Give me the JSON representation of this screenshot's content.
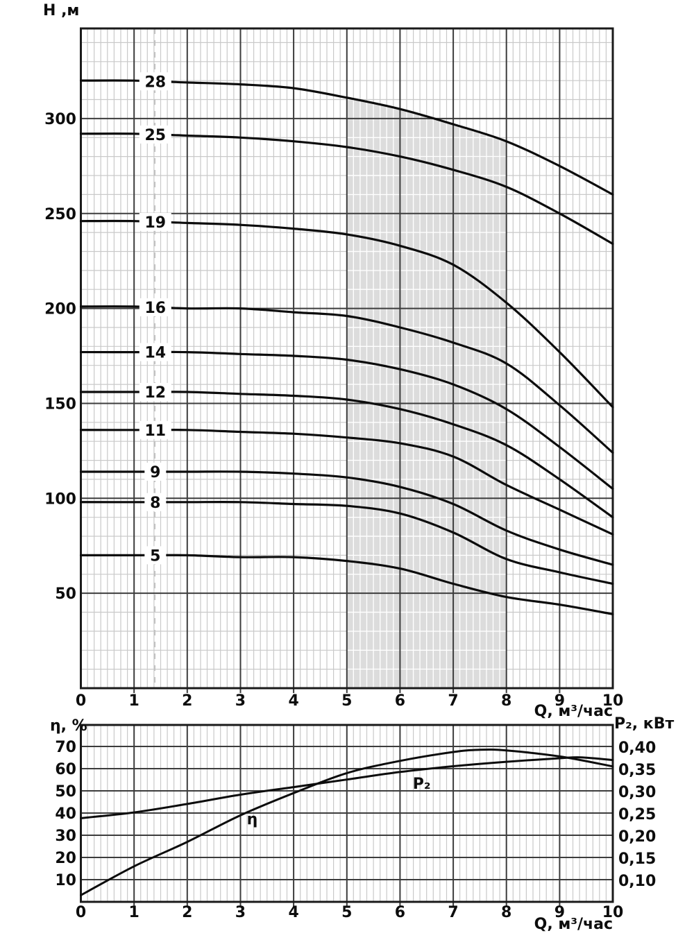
{
  "page": {
    "background": "#ffffff"
  },
  "colors": {
    "curve": "#0c0c0c",
    "grid_major": "#3c3c3c",
    "grid_minor": "#c9c9c9",
    "grid_minor_on_shade": "#ffffff",
    "border": "#1a1a1a",
    "shade": "#dcdcdc",
    "guide_dash": "#c2c2c2",
    "text": "#0d0d0d"
  },
  "chart_data": [
    {
      "id": "head_flow_chart",
      "type": "line",
      "title": "",
      "ylabel": "Н ,м",
      "xlabel": "Q, м³/час",
      "xlim": [
        0,
        10
      ],
      "ylim": [
        0,
        347
      ],
      "x_ticks": [
        "0",
        "1",
        "2",
        "3",
        "4",
        "5",
        "6",
        "7",
        "8",
        "9",
        "10"
      ],
      "y_ticks": [
        50,
        100,
        150,
        200,
        250,
        300
      ],
      "grid": "fine",
      "legend_position": "on-curve-labels",
      "shaded_band": {
        "x_from": 5,
        "x_to": 8
      },
      "label_column_q": 1.4,
      "guide_q": 1.39,
      "series": [
        {
          "name": "28",
          "x": [
            0,
            1,
            2,
            3,
            4,
            5,
            6,
            7,
            8,
            9,
            10
          ],
          "y": [
            320,
            320,
            319,
            318,
            316,
            311,
            305,
            297,
            288,
            275,
            260
          ]
        },
        {
          "name": "25",
          "x": [
            0,
            1,
            2,
            3,
            4,
            5,
            6,
            7,
            8,
            9,
            10
          ],
          "y": [
            292,
            292,
            291,
            290,
            288,
            285,
            280,
            273,
            264,
            250,
            234
          ]
        },
        {
          "name": "19",
          "x": [
            0,
            1,
            2,
            3,
            4,
            5,
            6,
            7,
            8,
            9,
            10
          ],
          "y": [
            246,
            246,
            245,
            244,
            242,
            239,
            233,
            223,
            203,
            177,
            148
          ]
        },
        {
          "name": "16",
          "x": [
            0,
            1,
            2,
            3,
            4,
            5,
            6,
            7,
            8,
            9,
            10
          ],
          "y": [
            201,
            201,
            200,
            200,
            198,
            196,
            190,
            182,
            171,
            149,
            124
          ]
        },
        {
          "name": "14",
          "x": [
            0,
            1,
            2,
            3,
            4,
            5,
            6,
            7,
            8,
            9,
            10
          ],
          "y": [
            177,
            177,
            177,
            176,
            175,
            173,
            168,
            160,
            147,
            127,
            105
          ]
        },
        {
          "name": "12",
          "x": [
            0,
            1,
            2,
            3,
            4,
            5,
            6,
            7,
            8,
            9,
            10
          ],
          "y": [
            156,
            156,
            156,
            155,
            154,
            152,
            147,
            139,
            128,
            110,
            90
          ]
        },
        {
          "name": "11",
          "x": [
            0,
            1,
            2,
            3,
            4,
            5,
            6,
            7,
            8,
            9,
            10
          ],
          "y": [
            136,
            136,
            136,
            135,
            134,
            132,
            129,
            122,
            107,
            94,
            81
          ]
        },
        {
          "name": "9",
          "x": [
            0,
            1,
            2,
            3,
            4,
            5,
            6,
            7,
            8,
            9,
            10
          ],
          "y": [
            114,
            114,
            114,
            114,
            113,
            111,
            106,
            97,
            83,
            73,
            65
          ]
        },
        {
          "name": "8",
          "x": [
            0,
            1,
            2,
            3,
            4,
            5,
            6,
            7,
            8,
            9,
            10
          ],
          "y": [
            98,
            98,
            98,
            98,
            97,
            96,
            92,
            82,
            68,
            61,
            55
          ]
        },
        {
          "name": "5",
          "x": [
            0,
            1,
            2,
            3,
            4,
            5,
            6,
            7,
            8,
            9,
            10
          ],
          "y": [
            70,
            70,
            70,
            69,
            69,
            67,
            63,
            55,
            48,
            44,
            39
          ]
        }
      ]
    },
    {
      "id": "efficiency_power_chart",
      "type": "line",
      "title": "",
      "xlabel": "Q, м³/час",
      "xlim": [
        0,
        10
      ],
      "x_ticks": [
        "0",
        "1",
        "2",
        "3",
        "4",
        "5",
        "6",
        "7",
        "8",
        "9",
        "10"
      ],
      "left_axis": {
        "label": "η, %",
        "ticks": [
          10,
          20,
          30,
          40,
          50,
          60,
          70
        ],
        "lim": [
          0,
          80
        ]
      },
      "right_axis": {
        "label": "P₂, кВт",
        "tick_labels": [
          "0,40",
          "0,35",
          "0,30",
          "0,25",
          "0,20",
          "0,15",
          "0,10"
        ],
        "tick_values": [
          0.4,
          0.35,
          0.3,
          0.25,
          0.2,
          0.15,
          0.1
        ],
        "lim": [
          0.05,
          0.45
        ]
      },
      "grid": "fine",
      "series": [
        {
          "name": "η",
          "axis": "left",
          "x": [
            0,
            1,
            2,
            3,
            4,
            5,
            6,
            7,
            7.5,
            8,
            9,
            10
          ],
          "y": [
            3,
            16,
            27,
            39,
            49,
            58,
            63.5,
            67.5,
            68.5,
            68.2,
            65.5,
            61
          ],
          "label_at": {
            "x": 3.12,
            "y": 35
          }
        },
        {
          "name": "P₂",
          "axis": "right",
          "x": [
            0,
            1,
            2,
            3,
            4,
            5,
            6,
            7,
            8,
            9,
            9.4,
            10
          ],
          "y": [
            0.24,
            0.253,
            0.272,
            0.293,
            0.31,
            0.327,
            0.344,
            0.357,
            0.367,
            0.375,
            0.377,
            0.371
          ],
          "label_at": {
            "x": 6.24,
            "y": 0.306
          }
        }
      ]
    }
  ]
}
